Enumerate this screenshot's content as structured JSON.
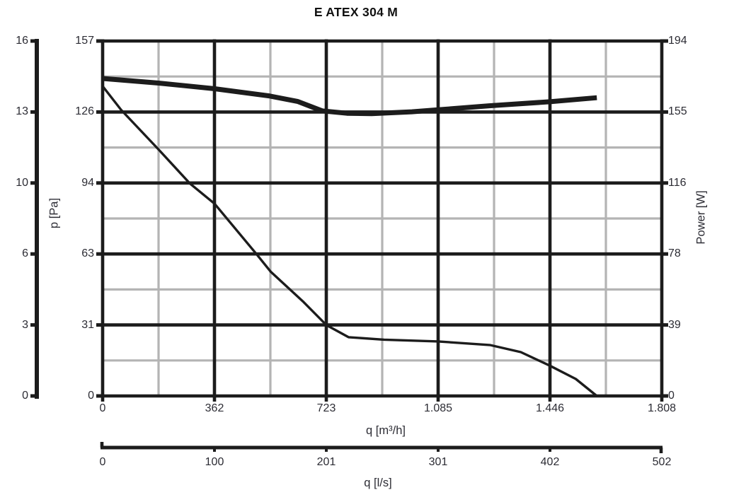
{
  "title": "E ATEX 304 M",
  "colors": {
    "line_black": "#1c1c1c",
    "grid_gray": "#b4b4b4",
    "text": "#2c2c34",
    "title_text": "#111111",
    "background": "#ffffff"
  },
  "chart_data": {
    "type": "line",
    "title": "E ATEX 304 M",
    "grid": {
      "major_color": "#1c1c1c",
      "minor_color": "#b4b4b4",
      "major_lines_per_axis": 6,
      "minor_lines": "midway between majors"
    },
    "legend": "none",
    "axes": {
      "x_bottom": {
        "label": "q [m³/h]",
        "range": [
          0,
          1808
        ],
        "tick_values": [
          0,
          362,
          723,
          1085,
          1446,
          1808
        ],
        "tick_labels": [
          "0",
          "362",
          "723",
          "1.085",
          "1.446",
          "1.808"
        ]
      },
      "x_secondary": {
        "label": "q [l/s]",
        "range": [
          0,
          502
        ],
        "tick_values": [
          0,
          100,
          201,
          301,
          402,
          502
        ],
        "tick_labels": [
          "0",
          "100",
          "201",
          "301",
          "402",
          "502"
        ]
      },
      "y_left_outer": {
        "label": "",
        "range": [
          0,
          16
        ],
        "tick_labels": [
          "16",
          "13",
          "10",
          "6",
          "3",
          "0"
        ]
      },
      "y_left_inner": {
        "label": "p [Pa]",
        "range": [
          0,
          157
        ],
        "tick_labels": [
          "157",
          "126",
          "94",
          "63",
          "31",
          "0"
        ]
      },
      "y_right": {
        "label": "Power [W]",
        "range": [
          0,
          194
        ],
        "tick_labels": [
          "194",
          "155",
          "116",
          "78",
          "39",
          "0"
        ]
      }
    },
    "series": [
      {
        "name": "static pressure vs airflow",
        "axis": "y_left_inner",
        "style": "thin",
        "points": [
          [
            0,
            137
          ],
          [
            60,
            126.5
          ],
          [
            181,
            109
          ],
          [
            282,
            94
          ],
          [
            362,
            85
          ],
          [
            496,
            63
          ],
          [
            543,
            55
          ],
          [
            650,
            41.5
          ],
          [
            723,
            31.4
          ],
          [
            795,
            26
          ],
          [
            910,
            24.9
          ],
          [
            1085,
            24.1
          ],
          [
            1254,
            22.5
          ],
          [
            1352,
            19.4
          ],
          [
            1446,
            13.4
          ],
          [
            1530,
            7.5
          ],
          [
            1598,
            0
          ]
        ]
      },
      {
        "name": "power input vs airflow",
        "axis": "y_right",
        "style": "thick",
        "points": [
          [
            0,
            173.5
          ],
          [
            181,
            171
          ],
          [
            362,
            167.9
          ],
          [
            538,
            164
          ],
          [
            630,
            161
          ],
          [
            710,
            155.8
          ],
          [
            790,
            154.5
          ],
          [
            870,
            154.3
          ],
          [
            1000,
            155.3
          ],
          [
            1085,
            156.4
          ],
          [
            1250,
            158.6
          ],
          [
            1446,
            160.8
          ],
          [
            1598,
            163
          ]
        ]
      }
    ]
  }
}
